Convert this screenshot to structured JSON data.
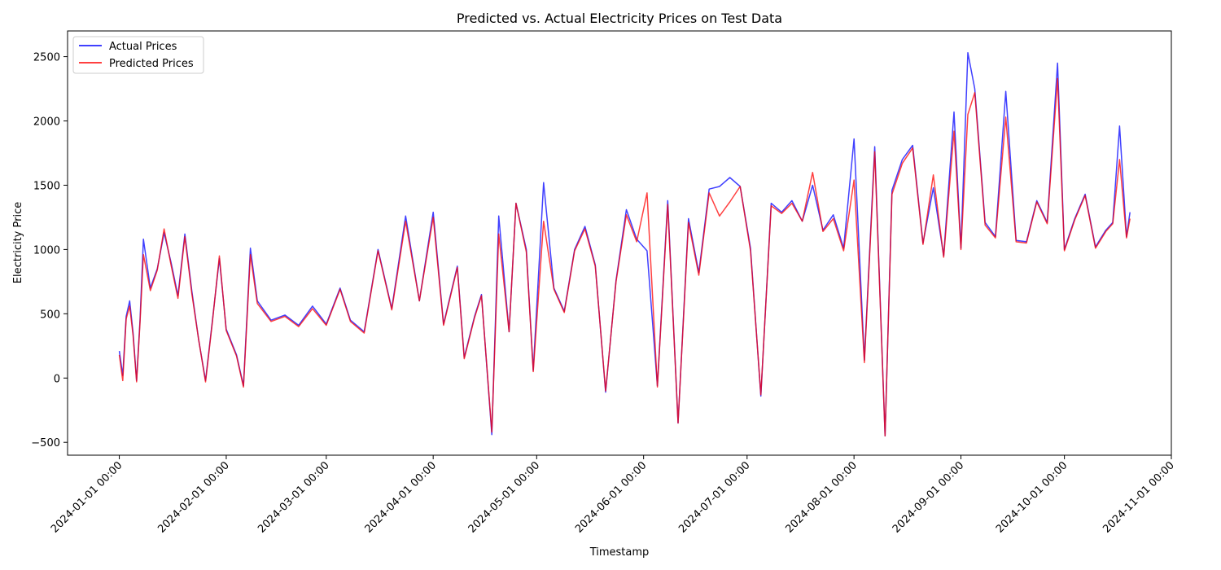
{
  "chart_data": {
    "type": "line",
    "title": "Predicted vs. Actual Electricity Prices on Test Data",
    "xlabel": "Timestamp",
    "ylabel": "Electricity Price",
    "xlim": [
      "2023-12-17",
      "2024-11-01"
    ],
    "ylim": [
      -600,
      2700
    ],
    "x_ticks": [
      "2024-01-01 00:00",
      "2024-02-01 00:00",
      "2024-03-01 00:00",
      "2024-04-01 00:00",
      "2024-05-01 00:00",
      "2024-06-01 00:00",
      "2024-07-01 00:00",
      "2024-08-01 00:00",
      "2024-09-01 00:00",
      "2024-10-01 00:00",
      "2024-11-01 00:00"
    ],
    "y_ticks": [
      -500,
      0,
      500,
      1000,
      1500,
      2000,
      2500
    ],
    "grid": false,
    "legend": "top-left",
    "colors": {
      "actual": "#0000ff",
      "predicted": "#ff0000"
    },
    "series": [
      {
        "name": "Actual Prices",
        "color": "#0000ff",
        "x": [
          "2024-01-01",
          "2024-01-02",
          "2024-01-03",
          "2024-01-04",
          "2024-01-05",
          "2024-01-06",
          "2024-01-07",
          "2024-01-08",
          "2024-01-10",
          "2024-01-12",
          "2024-01-14",
          "2024-01-16",
          "2024-01-18",
          "2024-01-20",
          "2024-01-22",
          "2024-01-24",
          "2024-01-26",
          "2024-01-28",
          "2024-01-30",
          "2024-02-01",
          "2024-02-04",
          "2024-02-06",
          "2024-02-08",
          "2024-02-10",
          "2024-02-14",
          "2024-02-18",
          "2024-02-22",
          "2024-02-26",
          "2024-03-01",
          "2024-03-05",
          "2024-03-08",
          "2024-03-12",
          "2024-03-16",
          "2024-03-20",
          "2024-03-24",
          "2024-03-28",
          "2024-04-01",
          "2024-04-04",
          "2024-04-08",
          "2024-04-10",
          "2024-04-13",
          "2024-04-15",
          "2024-04-18",
          "2024-04-20",
          "2024-04-23",
          "2024-04-25",
          "2024-04-28",
          "2024-04-30",
          "2024-05-03",
          "2024-05-06",
          "2024-05-09",
          "2024-05-12",
          "2024-05-15",
          "2024-05-18",
          "2024-05-21",
          "2024-05-24",
          "2024-05-27",
          "2024-05-30",
          "2024-06-02",
          "2024-06-05",
          "2024-06-08",
          "2024-06-11",
          "2024-06-14",
          "2024-06-17",
          "2024-06-20",
          "2024-06-23",
          "2024-06-26",
          "2024-06-29",
          "2024-07-02",
          "2024-07-05",
          "2024-07-08",
          "2024-07-11",
          "2024-07-14",
          "2024-07-17",
          "2024-07-20",
          "2024-07-23",
          "2024-07-26",
          "2024-07-29",
          "2024-08-01",
          "2024-08-04",
          "2024-08-07",
          "2024-08-10",
          "2024-08-12",
          "2024-08-15",
          "2024-08-18",
          "2024-08-21",
          "2024-08-24",
          "2024-08-27",
          "2024-08-30",
          "2024-09-01",
          "2024-09-03",
          "2024-09-05",
          "2024-09-08",
          "2024-09-11",
          "2024-09-14",
          "2024-09-17",
          "2024-09-20",
          "2024-09-23",
          "2024-09-26",
          "2024-09-29",
          "2024-10-01",
          "2024-10-04",
          "2024-10-07",
          "2024-10-10",
          "2024-10-13",
          "2024-10-15",
          "2024-10-17",
          "2024-10-19",
          "2024-10-20"
        ],
        "values": [
          210,
          20,
          480,
          600,
          350,
          -20,
          450,
          1080,
          700,
          850,
          1130,
          900,
          640,
          1120,
          680,
          300,
          -20,
          450,
          930,
          380,
          180,
          -60,
          1010,
          600,
          450,
          490,
          410,
          560,
          420,
          700,
          450,
          360,
          1000,
          540,
          1260,
          600,
          1290,
          420,
          870,
          160,
          480,
          650,
          -440,
          1260,
          360,
          1360,
          1000,
          60,
          1520,
          700,
          520,
          1000,
          1180,
          880,
          -110,
          760,
          1310,
          1080,
          990,
          -60,
          1380,
          -350,
          1240,
          820,
          1470,
          1490,
          1560,
          1490,
          1010,
          -140,
          1360,
          1290,
          1380,
          1220,
          1500,
          1150,
          1270,
          1010,
          1860,
          140,
          1800,
          -450,
          1460,
          1700,
          1810,
          1050,
          1480,
          950,
          2070,
          1010,
          2530,
          2250,
          1210,
          1100,
          2230,
          1070,
          1060,
          1380,
          1210,
          2450,
          1000,
          1240,
          1430,
          1020,
          1150,
          1210,
          1960,
          1100,
          1290
        ]
      },
      {
        "name": "Predicted Prices",
        "color": "#ff0000",
        "x": [
          "2024-01-01",
          "2024-01-02",
          "2024-01-03",
          "2024-01-04",
          "2024-01-05",
          "2024-01-06",
          "2024-01-07",
          "2024-01-08",
          "2024-01-10",
          "2024-01-12",
          "2024-01-14",
          "2024-01-16",
          "2024-01-18",
          "2024-01-20",
          "2024-01-22",
          "2024-01-24",
          "2024-01-26",
          "2024-01-28",
          "2024-01-30",
          "2024-02-01",
          "2024-02-04",
          "2024-02-06",
          "2024-02-08",
          "2024-02-10",
          "2024-02-14",
          "2024-02-18",
          "2024-02-22",
          "2024-02-26",
          "2024-03-01",
          "2024-03-05",
          "2024-03-08",
          "2024-03-12",
          "2024-03-16",
          "2024-03-20",
          "2024-03-24",
          "2024-03-28",
          "2024-04-01",
          "2024-04-04",
          "2024-04-08",
          "2024-04-10",
          "2024-04-13",
          "2024-04-15",
          "2024-04-18",
          "2024-04-20",
          "2024-04-23",
          "2024-04-25",
          "2024-04-28",
          "2024-04-30",
          "2024-05-03",
          "2024-05-06",
          "2024-05-09",
          "2024-05-12",
          "2024-05-15",
          "2024-05-18",
          "2024-05-21",
          "2024-05-24",
          "2024-05-27",
          "2024-05-30",
          "2024-06-02",
          "2024-06-05",
          "2024-06-08",
          "2024-06-11",
          "2024-06-14",
          "2024-06-17",
          "2024-06-20",
          "2024-06-23",
          "2024-06-26",
          "2024-06-29",
          "2024-07-02",
          "2024-07-05",
          "2024-07-08",
          "2024-07-11",
          "2024-07-14",
          "2024-07-17",
          "2024-07-20",
          "2024-07-23",
          "2024-07-26",
          "2024-07-29",
          "2024-08-01",
          "2024-08-04",
          "2024-08-07",
          "2024-08-10",
          "2024-08-12",
          "2024-08-15",
          "2024-08-18",
          "2024-08-21",
          "2024-08-24",
          "2024-08-27",
          "2024-08-30",
          "2024-09-01",
          "2024-09-03",
          "2024-09-05",
          "2024-09-08",
          "2024-09-11",
          "2024-09-14",
          "2024-09-17",
          "2024-09-20",
          "2024-09-23",
          "2024-09-26",
          "2024-09-29",
          "2024-10-01",
          "2024-10-04",
          "2024-10-07",
          "2024-10-10",
          "2024-10-13",
          "2024-10-15",
          "2024-10-17",
          "2024-10-19",
          "2024-10-20"
        ],
        "values": [
          180,
          -20,
          460,
          560,
          330,
          -30,
          430,
          960,
          680,
          840,
          1160,
          880,
          620,
          1100,
          660,
          300,
          -30,
          440,
          950,
          370,
          170,
          -70,
          960,
          580,
          440,
          480,
          400,
          540,
          410,
          690,
          440,
          350,
          990,
          530,
          1220,
          600,
          1250,
          410,
          860,
          150,
          470,
          640,
          -420,
          1120,
          360,
          1360,
          980,
          50,
          1220,
          690,
          510,
          990,
          1160,
          870,
          -100,
          750,
          1270,
          1060,
          1440,
          -70,
          1350,
          -350,
          1210,
          800,
          1440,
          1260,
          1370,
          1490,
          990,
          -130,
          1340,
          1280,
          1360,
          1220,
          1600,
          1140,
          1240,
          990,
          1540,
          120,
          1760,
          -450,
          1430,
          1670,
          1790,
          1040,
          1580,
          940,
          1920,
          1000,
          2050,
          2220,
          1190,
          1090,
          2030,
          1060,
          1050,
          1370,
          1200,
          2330,
          990,
          1230,
          1420,
          1010,
          1140,
          1200,
          1700,
          1090,
          1240
        ]
      }
    ]
  }
}
